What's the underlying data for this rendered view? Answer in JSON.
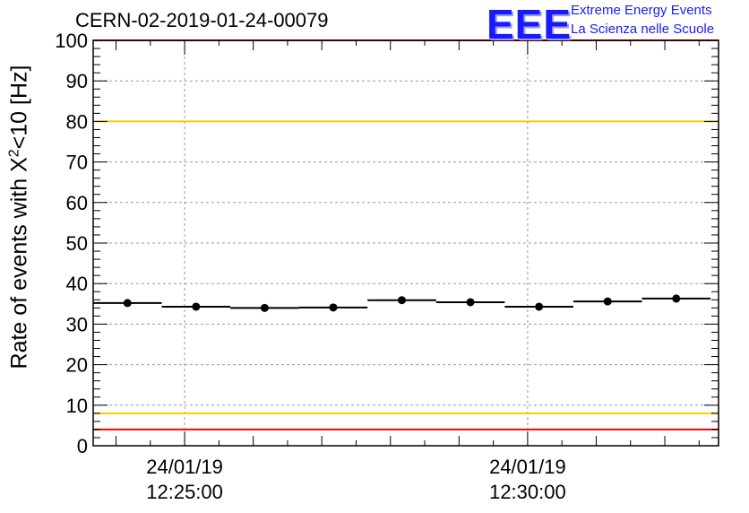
{
  "header": {
    "run_title": "CERN-02-2019-01-24-00079",
    "logo_text": "EEE",
    "logo_line1": "Extreme Energy Events",
    "logo_line2": "La Scienza nelle Scuole"
  },
  "colors": {
    "threshold_high": "#ff0000",
    "threshold_warn": "#f0d000",
    "logo": "#1a1aff",
    "points": "#000000",
    "grid": "#9a9a9a"
  },
  "chart_data": {
    "type": "scatter",
    "ylabel_prefix": "Rate of events with X",
    "ylabel_sup": "2",
    "ylabel_suffix": "<10 [Hz]",
    "ylim": [
      0,
      100
    ],
    "yticks": [
      0,
      10,
      20,
      30,
      40,
      50,
      60,
      70,
      80,
      90,
      100
    ],
    "xlim": [
      "24/01/19 12:23:40",
      "24/01/19 12:32:47"
    ],
    "xticks": [
      {
        "date": "24/01/19",
        "time": "12:25:00"
      },
      {
        "date": "24/01/19",
        "time": "12:30:00"
      }
    ],
    "grid": true,
    "bin_width_s": 60,
    "points": [
      {
        "x": "24/01/19 12:24:10",
        "y": 35.2
      },
      {
        "x": "24/01/19 12:25:10",
        "y": 34.3
      },
      {
        "x": "24/01/19 12:26:10",
        "y": 34.0
      },
      {
        "x": "24/01/19 12:27:10",
        "y": 34.1
      },
      {
        "x": "24/01/19 12:28:10",
        "y": 35.9
      },
      {
        "x": "24/01/19 12:29:10",
        "y": 35.4
      },
      {
        "x": "24/01/19 12:30:10",
        "y": 34.3
      },
      {
        "x": "24/01/19 12:31:10",
        "y": 35.6
      },
      {
        "x": "24/01/19 12:32:10",
        "y": 36.3
      }
    ],
    "reference_lines": [
      {
        "y": 100,
        "color": "#ff0000"
      },
      {
        "y": 80,
        "color": "#f0d000"
      },
      {
        "y": 8,
        "color": "#f0d000"
      },
      {
        "y": 4,
        "color": "#ff0000"
      }
    ]
  }
}
